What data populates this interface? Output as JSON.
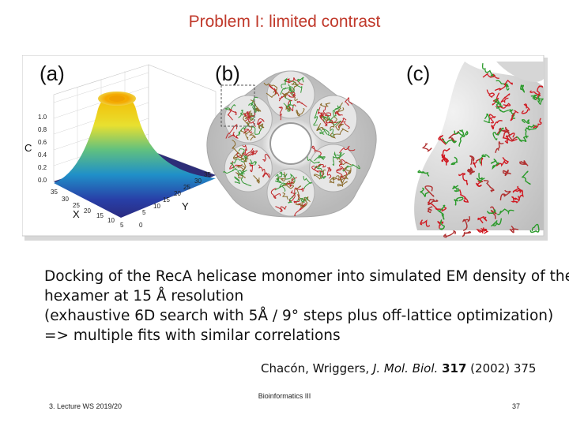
{
  "slide": {
    "title": "Problem I: limited contrast"
  },
  "figure": {
    "panel_labels": [
      "(a)",
      "(b)",
      "(c)"
    ],
    "panel_a": {
      "z_axis_label": "C",
      "z_ticks": [
        "1.0",
        "0.8",
        "0.6",
        "0.4",
        "0.2",
        "0.0"
      ],
      "x_axis_label": "X",
      "x_ticks": [
        "35",
        "30",
        "25",
        "20",
        "15",
        "10",
        "5",
        "0"
      ],
      "y_axis_label": "Y",
      "y_ticks": [
        "35",
        "30",
        "25",
        "20",
        "15",
        "10",
        "5"
      ]
    }
  },
  "body": {
    "lines": [
      "Docking of the RecA helicase monomer into simulated EM density of the",
      "hexamer at 15 Å resolution",
      "(exhaustive 6D search with 5Å / 9° steps plus off-lattice optimization)",
      "=> multiple fits with similar correlations"
    ],
    "citation": {
      "authors": "Chacón, Wriggers,",
      "journal": "J. Mol. Biol.",
      "volume": "317",
      "year_page": "(2002) 375"
    }
  },
  "footer": {
    "center": "Bioinformatics III",
    "left": "3. Lecture WS 2019/20",
    "right": "37"
  }
}
